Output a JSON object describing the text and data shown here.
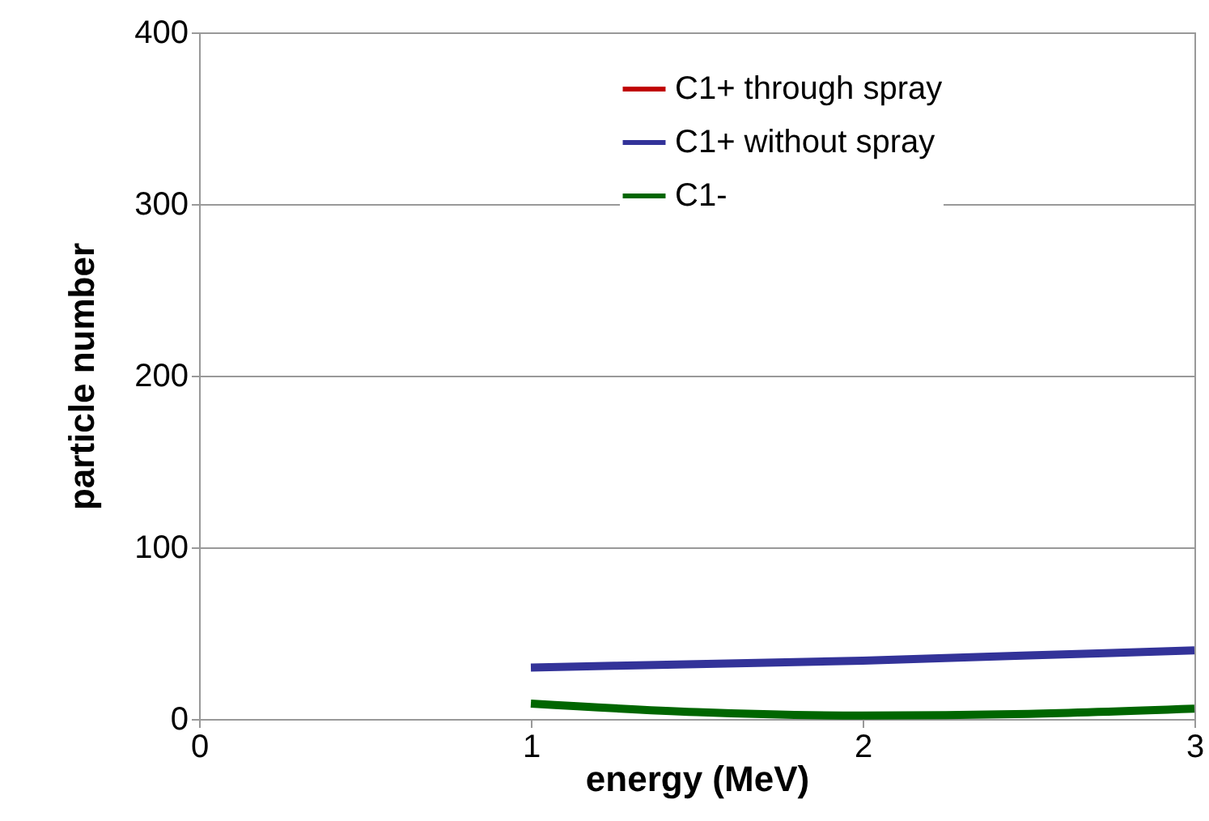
{
  "chart_data": {
    "type": "line",
    "xlabel": "energy (MeV)",
    "ylabel": "particle number",
    "x": [
      1,
      1.5,
      2,
      2.5,
      3
    ],
    "series": [
      {
        "name": "C1+ through spray",
        "color": "#c00000",
        "values": [
          null,
          null,
          null,
          null,
          null
        ]
      },
      {
        "name": "C1+ without spray",
        "color": "#333399",
        "values": [
          30,
          32,
          34,
          37,
          40
        ]
      },
      {
        "name": "C1-",
        "color": "#006600",
        "values": [
          9,
          4,
          2,
          3,
          6
        ]
      }
    ],
    "xlim": [
      0,
      3
    ],
    "xticks": [
      0,
      1,
      2,
      3
    ],
    "ylim": [
      0,
      400
    ],
    "yticks": [
      0,
      100,
      200,
      300,
      400
    ],
    "grid": "y",
    "legend": "top right",
    "marker": "none",
    "line_style": "solid"
  }
}
